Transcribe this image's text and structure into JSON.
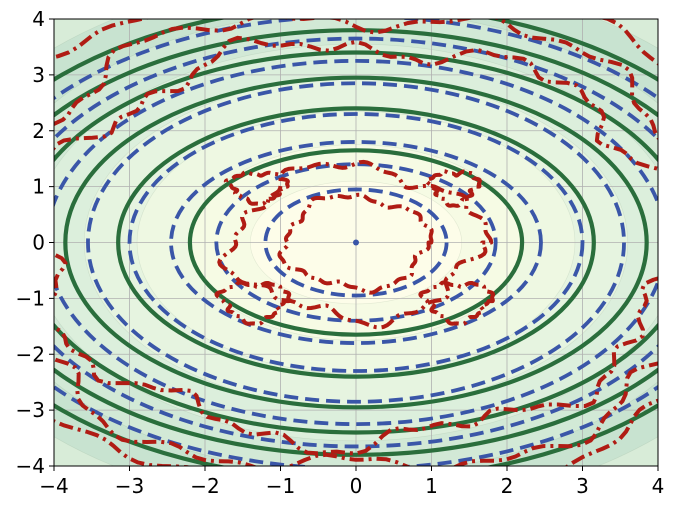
{
  "chart_data": {
    "type": "contour",
    "title": "",
    "xlabel": "",
    "ylabel": "",
    "xlim": [
      -4,
      4
    ],
    "ylim": [
      -4,
      4
    ],
    "grid": true,
    "x_ticks": [
      -4,
      -3,
      -2,
      -1,
      0,
      1,
      2,
      3,
      4
    ],
    "y_ticks": [
      -4,
      -3,
      -2,
      -1,
      0,
      1,
      2,
      3,
      4
    ],
    "x_tick_labels": [
      "−4",
      "−3",
      "−2",
      "−1",
      "0",
      "1",
      "2",
      "3",
      "4"
    ],
    "y_tick_labels": [
      "−4",
      "−3",
      "−2",
      "−1",
      "0",
      "1",
      "2",
      "3",
      "4"
    ],
    "background_fill": {
      "description": "filled contours of radial field, light yellow at center to pale green at corners",
      "levels": [
        {
          "rx": 1.4,
          "ry": 1.1,
          "color": "#fdfde9"
        },
        {
          "rx": 2.2,
          "ry": 1.75,
          "color": "#f6fbe4"
        },
        {
          "rx": 2.9,
          "ry": 2.35,
          "color": "#eef8e2"
        },
        {
          "rx": 3.6,
          "ry": 2.95,
          "color": "#e6f4e0"
        },
        {
          "rx": 4.3,
          "ry": 3.55,
          "color": "#dcefdc"
        },
        {
          "rx": 5.0,
          "ry": 4.15,
          "color": "#d2e9d6"
        },
        {
          "rx": 5.8,
          "ry": 4.8,
          "color": "#c8e3d0"
        }
      ],
      "outer_color": "#d8ecd8"
    },
    "series": [
      {
        "style": "solid",
        "color": "#2a6e3c",
        "rings": [
          {
            "rx": 2.2,
            "ry": 1.65
          },
          {
            "rx": 3.15,
            "ry": 2.4
          },
          {
            "rx": 3.85,
            "ry": 2.95
          },
          {
            "rx": 4.45,
            "ry": 3.4
          },
          {
            "rx": 5.0,
            "ry": 3.8
          },
          {
            "rx": 5.5,
            "ry": 4.25
          }
        ]
      },
      {
        "style": "dashed",
        "color": "#3a56a8",
        "rings": [
          {
            "rx": 1.2,
            "ry": 0.95
          },
          {
            "rx": 1.85,
            "ry": 1.4
          },
          {
            "rx": 2.45,
            "ry": 1.8
          },
          {
            "rx": 3.0,
            "ry": 2.3
          },
          {
            "rx": 3.55,
            "ry": 2.85
          },
          {
            "rx": 4.1,
            "ry": 3.25
          },
          {
            "rx": 4.65,
            "ry": 3.65
          },
          {
            "rx": 5.2,
            "ry": 4.05
          }
        ]
      },
      {
        "style": "dashdot",
        "color": "#b01c14",
        "noisy_curves": [
          {
            "kind": "ring",
            "rx": 0.95,
            "ry": 0.82,
            "amp": 0.07,
            "freq": 4,
            "phase": 0.0
          },
          {
            "kind": "ring",
            "rx": 1.62,
            "ry": 1.35,
            "amp": 0.14,
            "freq": 4,
            "phase": 0.4
          },
          {
            "kind": "blob",
            "cx": -1.3,
            "cy": 1.0,
            "rx": 0.36,
            "ry": 0.26,
            "amp": 0.05
          },
          {
            "kind": "blob",
            "cx": 1.3,
            "cy": 1.0,
            "rx": 0.3,
            "ry": 0.28,
            "amp": 0.05
          },
          {
            "kind": "blob",
            "cx": -1.35,
            "cy": -1.05,
            "rx": 0.42,
            "ry": 0.34,
            "amp": 0.06
          },
          {
            "kind": "blob",
            "cx": 1.35,
            "cy": -1.05,
            "rx": 0.42,
            "ry": 0.34,
            "amp": 0.06
          },
          {
            "kind": "ring",
            "rx": 4.25,
            "ry": 3.55,
            "amp": 0.22,
            "freq": 7,
            "phase": 0.9
          },
          {
            "kind": "ring",
            "rx": 4.95,
            "ry": 4.1,
            "amp": 0.22,
            "freq": 6,
            "phase": 1.7
          },
          {
            "kind": "ring",
            "rx": 5.6,
            "ry": 4.6,
            "amp": 0.2,
            "freq": 5,
            "phase": 2.3
          }
        ]
      }
    ],
    "center_point": {
      "x": 0,
      "y": 0,
      "color": "#3a56a8"
    }
  }
}
